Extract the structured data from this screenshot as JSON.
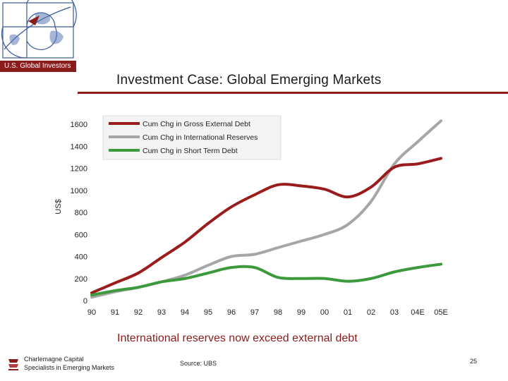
{
  "header": {
    "logo_text": "U.S. Global Investors",
    "title": "Investment Case: Global Emerging Markets"
  },
  "colors": {
    "brand": "#8a1c1c",
    "gross_external_debt": "#9b1c1c",
    "international_reserves": "#a6a6a6",
    "short_term_debt": "#3c9a3c"
  },
  "chart_data": {
    "type": "line",
    "title": "",
    "xlabel": "",
    "ylabel": "US$",
    "x": [
      "90",
      "91",
      "92",
      "93",
      "94",
      "95",
      "96",
      "97",
      "98",
      "99",
      "00",
      "01",
      "02",
      "03",
      "04E",
      "05E"
    ],
    "ylim": [
      0,
      1600
    ],
    "yticks": [
      0,
      200,
      400,
      600,
      800,
      1000,
      1200,
      1400,
      1600
    ],
    "legend_position": "top-left",
    "grid": false,
    "series": [
      {
        "name": "Cum Chg in Gross External Debt",
        "values": [
          70,
          160,
          250,
          390,
          530,
          700,
          850,
          960,
          1050,
          1040,
          1010,
          940,
          1030,
          1210,
          1240,
          1290
        ]
      },
      {
        "name": "Cum Chg in International Reserves",
        "values": [
          30,
          80,
          120,
          170,
          230,
          320,
          400,
          420,
          480,
          540,
          600,
          690,
          900,
          1240,
          1440,
          1630
        ]
      },
      {
        "name": "Cum Chg in Short Term Debt",
        "values": [
          50,
          90,
          120,
          170,
          200,
          250,
          300,
          300,
          210,
          200,
          200,
          175,
          200,
          260,
          300,
          330
        ]
      }
    ]
  },
  "subtitle": "International reserves now exceed external debt",
  "footer": {
    "company_line1": "Charlemagne Capital",
    "company_line2": "Specialists in Emerging Markets",
    "source": "Source:  UBS",
    "page_number": "25"
  }
}
